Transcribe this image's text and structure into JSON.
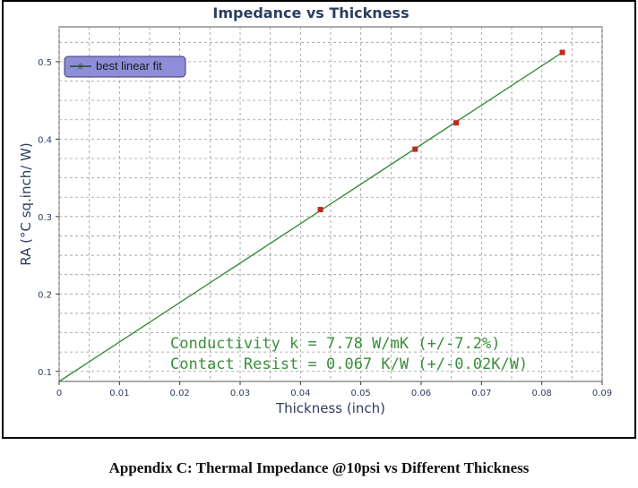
{
  "caption": "Appendix C: Thermal Impedance @10psi vs Different Thickness",
  "colors": {
    "fit_line": "#3c8d3c",
    "points": "#c0281e",
    "legend_bg": "#8e8ed8",
    "annotation": "#3a8f3a",
    "title": "#2c3e60"
  },
  "chart_data": {
    "type": "scatter",
    "title": "Impedance vs Thickness",
    "xlabel": "Thickness (inch)",
    "ylabel": "RA (°C sq.inch/ W)",
    "xlim": [
      0,
      0.09
    ],
    "ylim": [
      0.087,
      0.545
    ],
    "x_ticks": [
      0,
      0.01,
      0.02,
      0.03,
      0.04,
      0.05,
      0.06,
      0.07,
      0.08,
      0.09
    ],
    "x_tick_labels": [
      "0",
      "0.01",
      "0.02",
      "0.03",
      "0.04",
      "0.05",
      "0.06",
      "0.07",
      "0.08",
      "0.09"
    ],
    "y_ticks": [
      0.1,
      0.2,
      0.3,
      0.4,
      0.5
    ],
    "y_tick_labels": [
      "0.1",
      "0.2",
      "0.3",
      "0.4",
      "0.5"
    ],
    "grid": true,
    "points": [
      {
        "x": 0.0433,
        "y": 0.309
      },
      {
        "x": 0.059,
        "y": 0.387
      },
      {
        "x": 0.0658,
        "y": 0.421
      },
      {
        "x": 0.0834,
        "y": 0.512
      }
    ],
    "fit_line": {
      "x": [
        0,
        0.0834
      ],
      "y": [
        0.087,
        0.512
      ]
    },
    "legend": {
      "label": "best linear fit",
      "placement": "top-left"
    },
    "annotations": [
      "Conductivity k = 7.78 W/mK (+/-7.2%)",
      "Contact Resist = 0.067 K/W (+/-0.02K/W)"
    ]
  }
}
